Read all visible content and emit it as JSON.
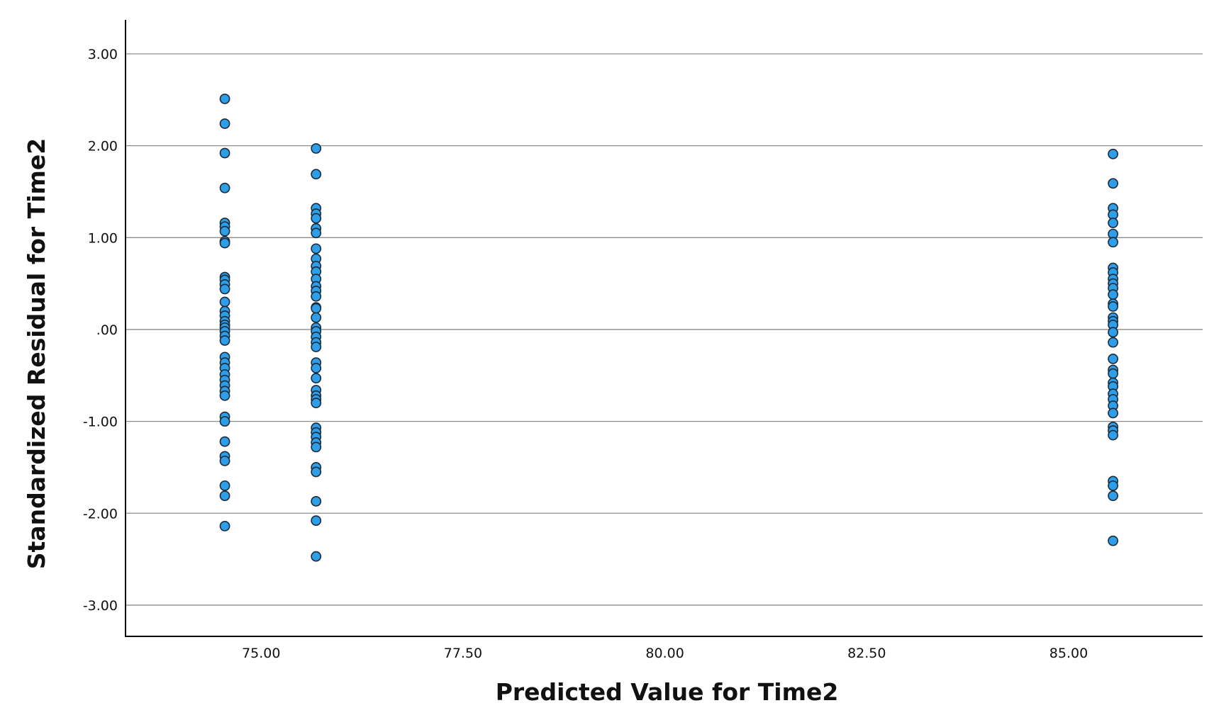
{
  "chart_data": {
    "type": "scatter",
    "title": "",
    "xlabel": "Predicted Value for Time2",
    "ylabel": "Standardized Residual for Time2",
    "xlim": [
      73.32,
      86.66
    ],
    "ylim": [
      -3.34,
      3.37
    ],
    "x_ticks": [
      {
        "value": 75,
        "label": "75.00"
      },
      {
        "value": 77.5,
        "label": "77.50"
      },
      {
        "value": 80,
        "label": "80.00"
      },
      {
        "value": 82.5,
        "label": "82.50"
      },
      {
        "value": 85,
        "label": "85.00"
      }
    ],
    "y_ticks": [
      {
        "value": 3,
        "label": "3.00"
      },
      {
        "value": 2,
        "label": "2.00"
      },
      {
        "value": 1,
        "label": "1.00"
      },
      {
        "value": 0,
        "label": ".00"
      },
      {
        "value": -1,
        "label": "-1.00"
      },
      {
        "value": -2,
        "label": "-2.00"
      },
      {
        "value": -3,
        "label": "-3.00"
      }
    ],
    "grid": "horizontal",
    "legend": "none",
    "marker_color": "#2e9ee8",
    "marker_edge_color": "#1b2a38",
    "series": [
      {
        "x": 74.55,
        "y": [
          2.51,
          2.24,
          1.92,
          1.54,
          1.16,
          1.12,
          1.07,
          0.96,
          0.94,
          0.57,
          0.54,
          0.49,
          0.44,
          0.3,
          0.2,
          0.15,
          0.09,
          0.05,
          0.02,
          -0.02,
          -0.07,
          -0.12,
          -0.3,
          -0.36,
          -0.42,
          -0.49,
          -0.55,
          -0.61,
          -0.67,
          -0.72,
          -0.95,
          -1.0,
          -1.22,
          -1.38,
          -1.43,
          -1.7,
          -1.81,
          -2.14
        ]
      },
      {
        "x": 75.68,
        "y": [
          1.97,
          1.69,
          1.32,
          1.26,
          1.21,
          1.1,
          1.05,
          0.88,
          0.77,
          0.69,
          0.63,
          0.55,
          0.47,
          0.42,
          0.36,
          0.24,
          0.23,
          0.13,
          0.02,
          -0.02,
          -0.08,
          -0.14,
          -0.19,
          -0.36,
          -0.42,
          -0.53,
          -0.66,
          -0.72,
          -0.76,
          -0.8,
          -1.07,
          -1.12,
          -1.17,
          -1.23,
          -1.28,
          -1.5,
          -1.55,
          -1.87,
          -2.08,
          -2.47
        ]
      },
      {
        "x": 85.55,
        "y": [
          1.91,
          1.59,
          1.32,
          1.25,
          1.16,
          1.04,
          0.95,
          0.67,
          0.62,
          0.55,
          0.5,
          0.45,
          0.38,
          0.28,
          0.25,
          0.13,
          0.09,
          0.05,
          -0.03,
          -0.14,
          -0.32,
          -0.44,
          -0.48,
          -0.58,
          -0.62,
          -0.7,
          -0.76,
          -0.83,
          -0.91,
          -1.06,
          -1.1,
          -1.15,
          -1.65,
          -1.7,
          -1.81,
          -2.3
        ]
      }
    ]
  }
}
